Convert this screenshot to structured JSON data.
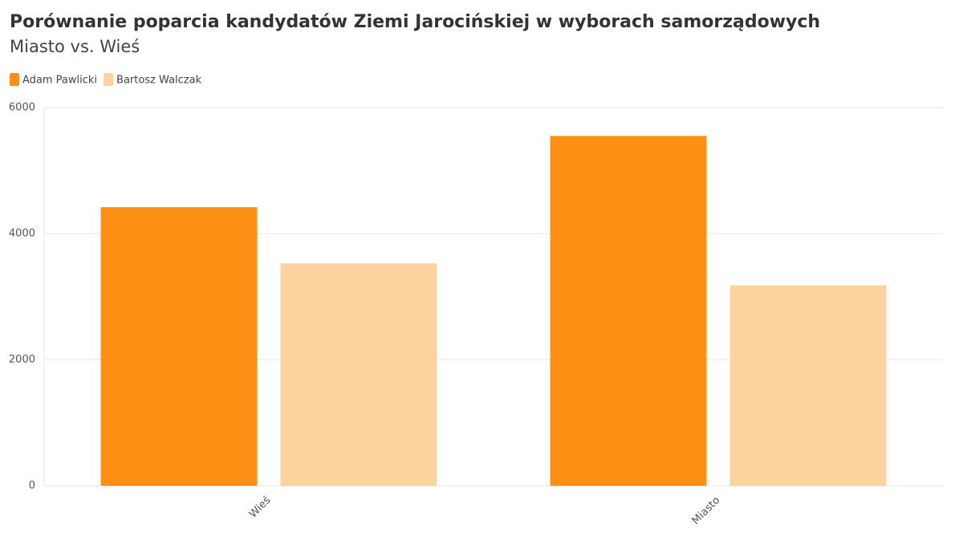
{
  "chart_data": {
    "type": "bar",
    "title": "Porównanie poparcia kandydatów Ziemi Jarocińskiej w wyborach samorządowych",
    "subtitle": "Miasto vs. Wieś",
    "categories": [
      "Wieś",
      "Miasto"
    ],
    "series": [
      {
        "name": "Adam Pawlicki",
        "color": "#fd9014",
        "values": [
          4420,
          5550
        ]
      },
      {
        "name": "Bartosz Walczak",
        "color": "#fcd29f",
        "values": [
          3530,
          3180
        ]
      }
    ],
    "ylim": [
      0,
      6000
    ],
    "yticks": [
      0,
      2000,
      4000,
      6000
    ],
    "grid": true,
    "legend": "top-left"
  }
}
